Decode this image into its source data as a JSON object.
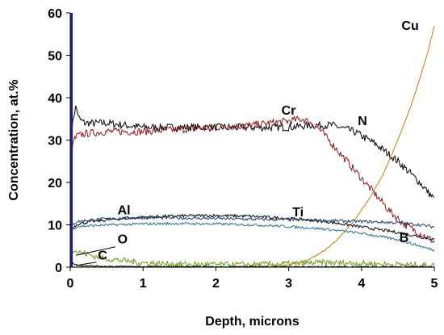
{
  "chart_data": {
    "type": "line",
    "title": "",
    "xlabel": "Depth, microns",
    "ylabel": "Concentration, at.%",
    "xlim": [
      0,
      5
    ],
    "ylim": [
      0,
      60
    ],
    "xticks": [
      0,
      1,
      2,
      3,
      4,
      5
    ],
    "yticks": [
      0,
      10,
      20,
      30,
      40,
      50,
      60
    ],
    "grid": false,
    "legend": "none",
    "series": [
      {
        "name": "N",
        "color": "#000000",
        "x": [
          0.02,
          0.05,
          0.08,
          0.12,
          0.2,
          0.5,
          1.0,
          1.5,
          2.0,
          2.5,
          3.0,
          3.3,
          3.6,
          3.9,
          4.2,
          4.5,
          4.8,
          5.0
        ],
        "y": [
          32,
          36,
          38,
          35,
          34,
          34,
          33,
          33,
          33,
          33,
          33,
          33.5,
          33.5,
          32,
          29,
          25,
          20,
          16
        ]
      },
      {
        "name": "Cr",
        "color": "#8b1a1a",
        "x": [
          0.02,
          0.05,
          0.1,
          0.2,
          0.5,
          1.0,
          1.5,
          2.0,
          2.5,
          3.0,
          3.2,
          3.4,
          3.6,
          3.8,
          4.0,
          4.2,
          4.4,
          4.6,
          4.8,
          5.0
        ],
        "y": [
          27,
          30,
          31,
          31.5,
          32,
          32,
          32.5,
          33,
          33.5,
          34.5,
          35,
          33,
          29,
          25,
          21,
          17,
          13,
          10,
          8,
          6
        ]
      },
      {
        "name": "Cu",
        "color": "#c87a10",
        "x": [
          0.0,
          0.5,
          1.0,
          1.5,
          2.0,
          2.5,
          2.9,
          3.1,
          3.3,
          3.5,
          3.7,
          3.9,
          4.1,
          4.3,
          4.5,
          4.7,
          4.9,
          5.0
        ],
        "y": [
          0,
          0,
          0,
          0,
          0,
          0.1,
          0.3,
          0.8,
          2,
          4,
          7,
          11,
          16,
          22,
          30,
          39,
          50,
          57
        ]
      },
      {
        "name": "Al",
        "color": "#000000",
        "x": [
          0.02,
          0.1,
          0.3,
          0.6,
          1.0,
          1.5,
          2.0,
          2.5,
          3.0,
          3.5,
          4.0,
          4.5,
          4.8,
          5.0
        ],
        "y": [
          9,
          10.2,
          10.8,
          11.3,
          11.8,
          12.1,
          12.2,
          12.0,
          11.5,
          10.8,
          9.5,
          8.2,
          7.2,
          6.5
        ]
      },
      {
        "name": "Ti",
        "color": "#1f3f66",
        "x": [
          0.02,
          0.1,
          0.3,
          0.6,
          1.0,
          1.5,
          2.0,
          2.5,
          3.0,
          3.5,
          4.0,
          4.5,
          4.8,
          5.0
        ],
        "y": [
          10,
          10.8,
          11.2,
          11.5,
          11.7,
          11.6,
          11.5,
          11.3,
          11.2,
          11.0,
          10.8,
          10.5,
          10.0,
          9.5
        ]
      },
      {
        "name": "B",
        "color": "#2b6f8f",
        "x": [
          0.02,
          0.1,
          0.3,
          0.6,
          1.0,
          1.5,
          2.0,
          2.5,
          3.0,
          3.5,
          4.0,
          4.5,
          4.8,
          5.0
        ],
        "y": [
          9,
          9.6,
          9.8,
          10.0,
          10.2,
          10.3,
          10.2,
          10.0,
          9.6,
          9.0,
          8.0,
          6.5,
          5.0,
          4.0
        ]
      },
      {
        "name": "O",
        "color": "#6a9a1a",
        "x": [
          0.0,
          0.05,
          0.1,
          0.2,
          0.3,
          0.5,
          0.8,
          1.0,
          1.5,
          2.0,
          2.5,
          3.0,
          3.5,
          4.0,
          4.5,
          5.0
        ],
        "y": [
          5,
          4,
          3.6,
          3.2,
          2.7,
          2.0,
          1.4,
          1.0,
          0.7,
          0.6,
          0.6,
          0.8,
          1.1,
          0.9,
          0.6,
          0.4
        ]
      },
      {
        "name": "C",
        "color": "#000000",
        "x": [
          0.0,
          0.05,
          0.1,
          0.3,
          0.5,
          1.0,
          2.0,
          3.0,
          4.0,
          5.0
        ],
        "y": [
          1.5,
          0.8,
          0.5,
          0.3,
          0.2,
          0.15,
          0.1,
          0.1,
          0.1,
          0.1
        ]
      }
    ],
    "annotations": [
      {
        "text": "Cu",
        "x": 4.55,
        "y": 56
      },
      {
        "text": "Cr",
        "x": 2.9,
        "y": 36
      },
      {
        "text": "N",
        "x": 3.95,
        "y": 33.5
      },
      {
        "text": "Al",
        "x": 0.65,
        "y": 12.5
      },
      {
        "text": "Ti",
        "x": 3.05,
        "y": 12
      },
      {
        "text": "B",
        "x": 4.52,
        "y": 6
      },
      {
        "text": "O",
        "x": 0.65,
        "y": 5.6
      },
      {
        "text": "C",
        "x": 0.38,
        "y": 1.8
      }
    ],
    "surface_spike": {
      "x": 0.02,
      "y_top": 60,
      "color": "#1a1aa0"
    }
  }
}
